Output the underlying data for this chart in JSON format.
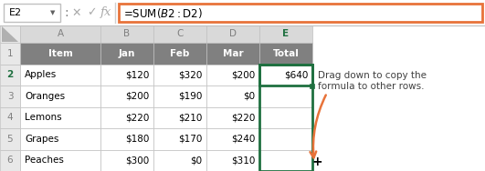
{
  "name_box": "E2",
  "formula": "=SUM($B2:$D2)",
  "col_letters": [
    "A",
    "B",
    "C",
    "D",
    "E"
  ],
  "headers": [
    "Item",
    "Jan",
    "Feb",
    "Mar",
    "Total"
  ],
  "rows": [
    [
      "Apples",
      "$120",
      "$320",
      "$200",
      "$640"
    ],
    [
      "Oranges",
      "$200",
      "$190",
      "$0",
      ""
    ],
    [
      "Lemons",
      "$220",
      "$210",
      "$220",
      ""
    ],
    [
      "Grapes",
      "$180",
      "$170",
      "$240",
      ""
    ],
    [
      "Peaches",
      "$300",
      "$0",
      "$310",
      ""
    ]
  ],
  "annotation_line1": "Drag down to copy the",
  "annotation_line2": "formula to other rows.",
  "header_bg": "#808080",
  "header_text": "#FFFFFF",
  "col_header_bg": "#D9D9D9",
  "col_header_text": "#808080",
  "selected_col_bg": "#D9D9D9",
  "selected_col_text": "#1F7040",
  "cell_bg": "#FFFFFF",
  "alt_row_bg": "#F2F2F2",
  "cell_text": "#000000",
  "grid_color": "#C0C0C0",
  "formula_bar_border": "#E8733A",
  "selected_cell_border": "#1F7040",
  "selected_cell_bg": "#FFFFFF",
  "toolbar_bg": "#FFFFFF",
  "annotation_color": "#E8733A",
  "annotation_text_color": "#404040",
  "row2_num_color": "#1F7040",
  "namebox_border": "#C0C0C0",
  "toolbar_border": "#C0C0C0"
}
